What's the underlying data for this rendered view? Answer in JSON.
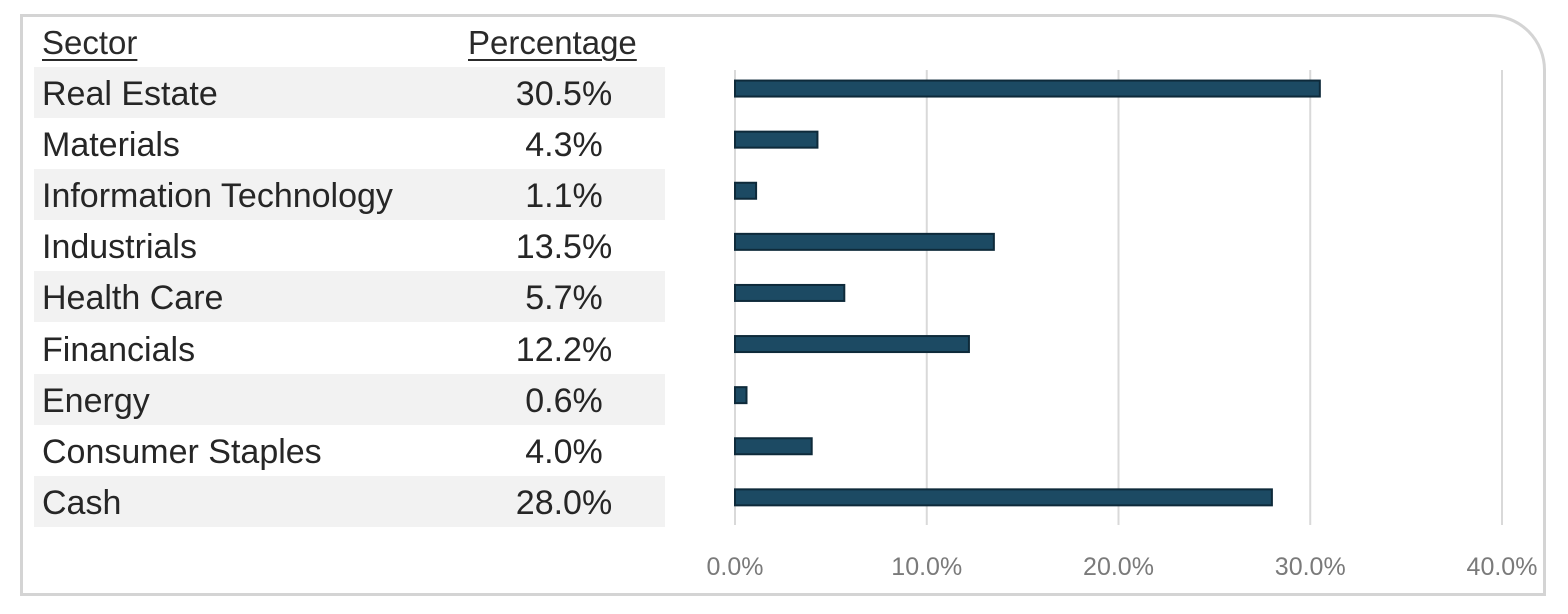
{
  "table": {
    "header_sector": "Sector",
    "header_percentage": "Percentage"
  },
  "chart_data": {
    "type": "bar",
    "orientation": "horizontal",
    "categories": [
      "Real Estate",
      "Materials",
      "Information Technology",
      "Industrials",
      "Health Care",
      "Financials",
      "Energy",
      "Consumer Staples",
      "Cash"
    ],
    "labels": [
      "30.5%",
      "4.3%",
      "1.1%",
      "13.5%",
      "5.7%",
      "12.2%",
      "0.6%",
      "4.0%",
      "28.0%"
    ],
    "values": [
      30.5,
      4.3,
      1.1,
      13.5,
      5.7,
      12.2,
      0.6,
      4.0,
      28.0
    ],
    "xlim": [
      0,
      40
    ],
    "x_ticks": [
      "0.0%",
      "10.0%",
      "20.0%",
      "30.0%",
      "40.0%"
    ],
    "x_tick_values": [
      0,
      10,
      20,
      30,
      40
    ],
    "grid": "vertical",
    "bar_color": "#1c4a63",
    "title": "",
    "xlabel": "",
    "ylabel": ""
  }
}
